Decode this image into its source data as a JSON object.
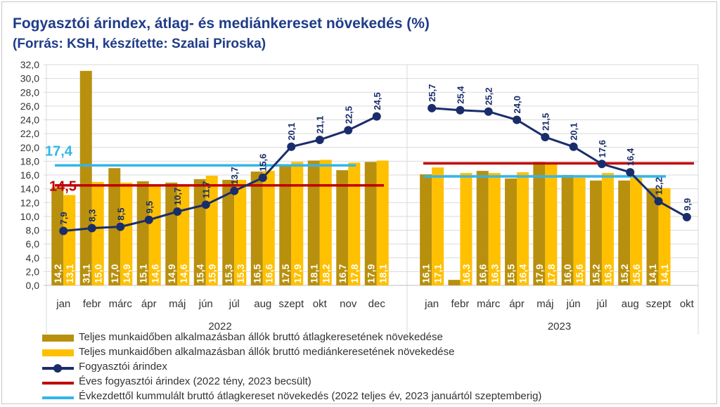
{
  "title": "Fogyasztói árindex, átlag- és mediánkereset növekedés (%)",
  "subtitle": "(Forrás: KSH, készítette: Szalai Piroska)",
  "colors": {
    "avg_bar": "#b8900e",
    "median_bar": "#ffc000",
    "cpi_line": "#1a2d6b",
    "annual_cpi": "#c00000",
    "cumulative": "#33b5ea",
    "grid": "#d9d9d9",
    "axis_text": "#333333"
  },
  "chart_data": {
    "type": "bar",
    "ylim": [
      0,
      32
    ],
    "ytick_step": 2,
    "y_tick_labels": [
      "0,0",
      "2,0",
      "4,0",
      "6,0",
      "8,0",
      "10,0",
      "12,0",
      "14,0",
      "16,0",
      "18,0",
      "20,0",
      "22,0",
      "24,0",
      "26,0",
      "28,0",
      "30,0",
      "32,0"
    ],
    "grid": true,
    "groups": [
      {
        "year": "2022",
        "months": [
          "jan",
          "febr",
          "márc",
          "ápr",
          "máj",
          "jún",
          "júl",
          "aug",
          "szept",
          "okt",
          "nov",
          "dec"
        ],
        "avg_wage": [
          14.2,
          31.1,
          17.0,
          15.1,
          14.9,
          15.4,
          15.3,
          16.5,
          17.5,
          18.1,
          16.7,
          17.9
        ],
        "avg_wage_labels": [
          "14,2",
          "31,1",
          "17,0",
          "15,1",
          "14,9",
          "15,4",
          "15,3",
          "16,5",
          "17,5",
          "18,1",
          "16,7",
          "17,9"
        ],
        "median_wage": [
          13.1,
          15.0,
          14.9,
          14.6,
          14.6,
          15.9,
          15.3,
          16.6,
          17.9,
          18.2,
          17.8,
          18.1
        ],
        "median_wage_labels": [
          "13,1",
          "15,0",
          "14,9",
          "14,6",
          "14,6",
          "15,9",
          "15,3",
          "16,6",
          "17,9",
          "18,2",
          "17,8",
          "18,1"
        ],
        "cpi": [
          7.9,
          8.3,
          8.5,
          9.5,
          10.7,
          11.7,
          13.7,
          15.6,
          20.1,
          21.1,
          22.5,
          24.5
        ],
        "cpi_labels": [
          "7,9",
          "8,3",
          "8,5",
          "9,5",
          "10,7",
          "11,7",
          "13,7",
          "15,6",
          "20,1",
          "21,1",
          "22,5",
          "24,5"
        ],
        "annual_cpi": 14.5,
        "annual_cpi_label": "14,5",
        "cumulative_avg": 17.4,
        "cumulative_avg_label": "17,4"
      },
      {
        "year": "2023",
        "months": [
          "jan",
          "febr",
          "márc",
          "ápr",
          "máj",
          "jún",
          "júl",
          "aug",
          "szept",
          "okt"
        ],
        "avg_wage": [
          16.1,
          0.8,
          16.6,
          15.5,
          17.9,
          16.0,
          15.2,
          15.2,
          14.1,
          null
        ],
        "avg_wage_labels": [
          "16,1",
          "",
          "16,6",
          "15,5",
          "17,9",
          "16,0",
          "15,2",
          "15,2",
          "14,1",
          ""
        ],
        "median_wage": [
          17.1,
          16.3,
          16.3,
          16.4,
          17.8,
          15.6,
          16.3,
          15.6,
          14.1,
          null
        ],
        "median_wage_labels": [
          "17,1",
          "16,3",
          "16,3",
          "16,4",
          "17,8",
          "15,6",
          "16,3",
          "15,6",
          "14,1",
          ""
        ],
        "cpi": [
          25.7,
          25.4,
          25.2,
          24.0,
          21.5,
          20.1,
          17.6,
          16.4,
          12.2,
          9.9
        ],
        "cpi_labels": [
          "25,7",
          "25,4",
          "25,2",
          "24,0",
          "21,5",
          "20,1",
          "17,6",
          "16,4",
          "12,2",
          "9,9"
        ],
        "annual_cpi": 17.7,
        "cumulative_avg": 15.8
      }
    ]
  },
  "legend": [
    {
      "key": "avg_bar",
      "kind": "bar",
      "label": "Teljes munkaidőben alkalmazásban állók bruttó átlagkeresetének növekedése"
    },
    {
      "key": "median_bar",
      "kind": "bar",
      "label": "Teljes munkaidőben alkalmazásban állók bruttó mediánkeresetének növekedése"
    },
    {
      "key": "cpi_line",
      "kind": "marker-line",
      "label": "Fogyasztói árindex"
    },
    {
      "key": "annual_cpi",
      "kind": "line",
      "label": "Éves fogyasztói árindex (2022 tény, 2023 becsült)"
    },
    {
      "key": "cumulative",
      "kind": "line",
      "label": "Évkezdettől kummulált bruttó átlagkereset növekedés (2022 teljes év, 2023 januártól szeptemberig)"
    }
  ]
}
